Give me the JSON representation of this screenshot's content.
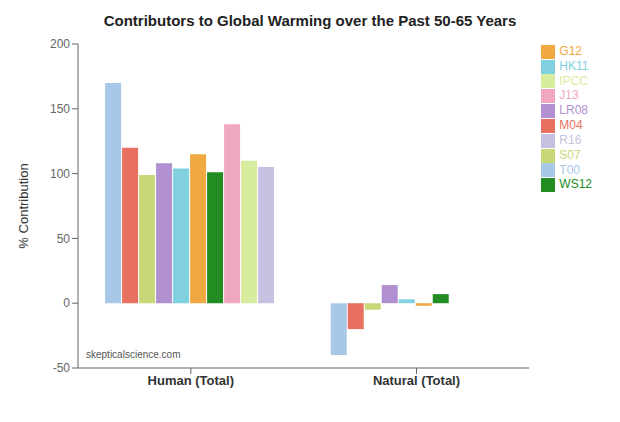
{
  "chart_data": {
    "type": "bar",
    "title": "Contributors to Global Warming over the Past 50-65 Years",
    "ylabel": "% Contribution",
    "categories": [
      "Human (Total)",
      "Natural (Total)"
    ],
    "series": [
      {
        "name": "T00",
        "color": "#A8C8E8",
        "values": [
          170,
          -40
        ]
      },
      {
        "name": "M04",
        "color": "#E87060",
        "values": [
          120,
          -20
        ]
      },
      {
        "name": "S07",
        "color": "#C8D878",
        "values": [
          99,
          -5
        ]
      },
      {
        "name": "LR08",
        "color": "#B090D0",
        "values": [
          108,
          14
        ]
      },
      {
        "name": "HK11",
        "color": "#80D0E0",
        "values": [
          104,
          3
        ]
      },
      {
        "name": "G12",
        "color": "#F0A840",
        "values": [
          115,
          -2
        ]
      },
      {
        "name": "WS12",
        "color": "#228B22",
        "values": [
          101,
          7
        ]
      },
      {
        "name": "J13",
        "color": "#F0A8C0",
        "values": [
          138,
          null
        ]
      },
      {
        "name": "IPCC",
        "color": "#D8ECA0",
        "values": [
          110,
          null
        ]
      },
      {
        "name": "R16",
        "color": "#C8C0E0",
        "values": [
          105,
          null
        ]
      }
    ],
    "ylim": [
      -50,
      200
    ],
    "yticks": [
      -50,
      0,
      50,
      100,
      150,
      200
    ],
    "grid": false,
    "legend": "upper right",
    "annotations": [
      "skepticalscience.com"
    ]
  }
}
